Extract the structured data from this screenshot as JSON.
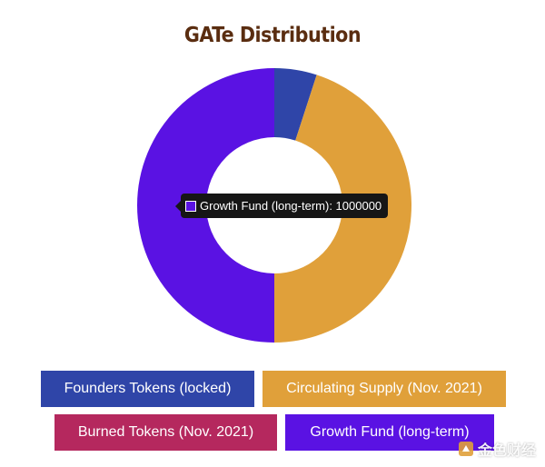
{
  "chart_data": {
    "type": "pie",
    "variant": "donut",
    "title": "GATe Distribution",
    "categories": [
      "Founders Tokens (locked)",
      "Circulating Supply (Nov. 2021)",
      "Burned Tokens (Nov. 2021)",
      "Growth Fund (long-term)"
    ],
    "values": [
      100000,
      900000,
      0,
      1000000
    ],
    "colors": [
      "#2f45a8",
      "#e0a03a",
      "#b5285e",
      "#5a12e3"
    ],
    "legend_position": "bottom"
  },
  "tooltip": {
    "text": "Growth Fund (long-term): 1000000",
    "color": "#5a12e3"
  },
  "watermark": {
    "text": "金色财经"
  }
}
